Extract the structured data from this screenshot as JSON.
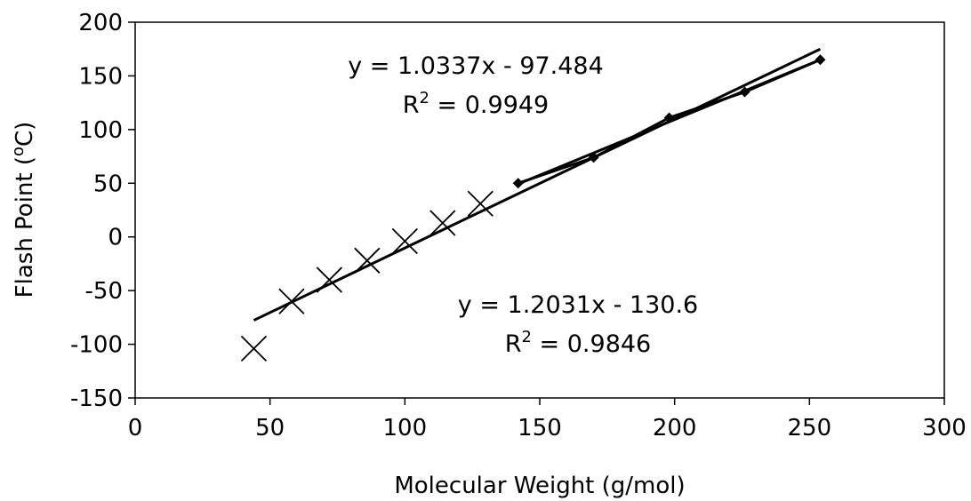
{
  "chart_data": {
    "type": "scatter",
    "title": "",
    "xlabel": "Molecular Weight (g/mol)",
    "ylabel_parts": {
      "pre": "Flash Point (",
      "sup": "o",
      "post": "C)"
    },
    "xlim": [
      0,
      300
    ],
    "ylim": [
      -150,
      200
    ],
    "xticks": [
      0,
      50,
      100,
      150,
      200,
      250,
      300
    ],
    "yticks": [
      -150,
      -100,
      -50,
      0,
      50,
      100,
      150,
      200
    ],
    "grid": false,
    "legend": "none",
    "series": [
      {
        "marker": "x",
        "color": "#000000",
        "points": [
          [
            44,
            -104
          ],
          [
            58,
            -60
          ],
          [
            72,
            -40
          ],
          [
            86,
            -22
          ],
          [
            100,
            -4
          ],
          [
            114,
            13
          ],
          [
            128,
            31
          ]
        ]
      },
      {
        "marker": "diamond",
        "color": "#000000",
        "points": [
          [
            142,
            50
          ],
          [
            170,
            74
          ],
          [
            198,
            111
          ],
          [
            226,
            135
          ],
          [
            254,
            165
          ]
        ]
      }
    ],
    "trendlines": [
      {
        "slope": 1.2031,
        "intercept": -130.6,
        "x_range": [
          44,
          254
        ]
      },
      {
        "slope": 1.0337,
        "intercept": -97.484,
        "x_range": [
          142,
          254
        ]
      }
    ],
    "annotations": [
      {
        "eq": "y = 1.0337x - 97.484",
        "r2_label": "R",
        "r2_sup": "2",
        "r2_value": " = 0.9949"
      },
      {
        "eq": "y = 1.2031x - 130.6",
        "r2_label": "R",
        "r2_sup": "2",
        "r2_value": " = 0.9846"
      }
    ]
  }
}
